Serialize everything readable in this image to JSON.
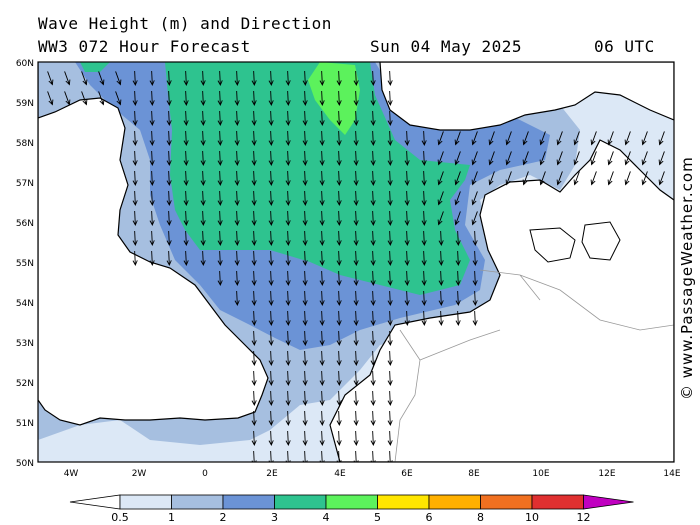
{
  "header": {
    "title_line1": "Wave Height (m) and Direction",
    "title_line2": "WW3 072 Hour Forecast",
    "date": "Sun 04 May 2025",
    "time": "06 UTC"
  },
  "watermark": "© www.PassageWeather.com",
  "axes": {
    "lat_labels": [
      "60N",
      "59N",
      "58N",
      "57N",
      "56N",
      "55N",
      "54N",
      "53N",
      "52N",
      "51N",
      "50N"
    ],
    "lon_labels": [
      "4W",
      "2W",
      "0",
      "2E",
      "4E",
      "6E",
      "8E",
      "10E",
      "12E",
      "14E"
    ]
  },
  "legend": {
    "labels": [
      "0.5",
      "1",
      "2",
      "3",
      "4",
      "5",
      "6",
      "8",
      "10",
      "12"
    ],
    "colors": [
      "#dce8f6",
      "#a6bfe0",
      "#6b93d6",
      "#2ec38f",
      "#5cf25c",
      "#ffe600",
      "#ffb000",
      "#f07020",
      "#e03030",
      "#c00000",
      "#c000c0"
    ],
    "unit": "m"
  },
  "wave_colors": {
    "land": "#ffffff",
    "band_lt": "#dce8f6",
    "band_1_2": "#a6bfe0",
    "band_2_3": "#6b93d6",
    "band_3_4": "#2ec38f",
    "band_4_5": "#5cf25c"
  },
  "direction": "south (arrows point downwind, generally N to S)"
}
